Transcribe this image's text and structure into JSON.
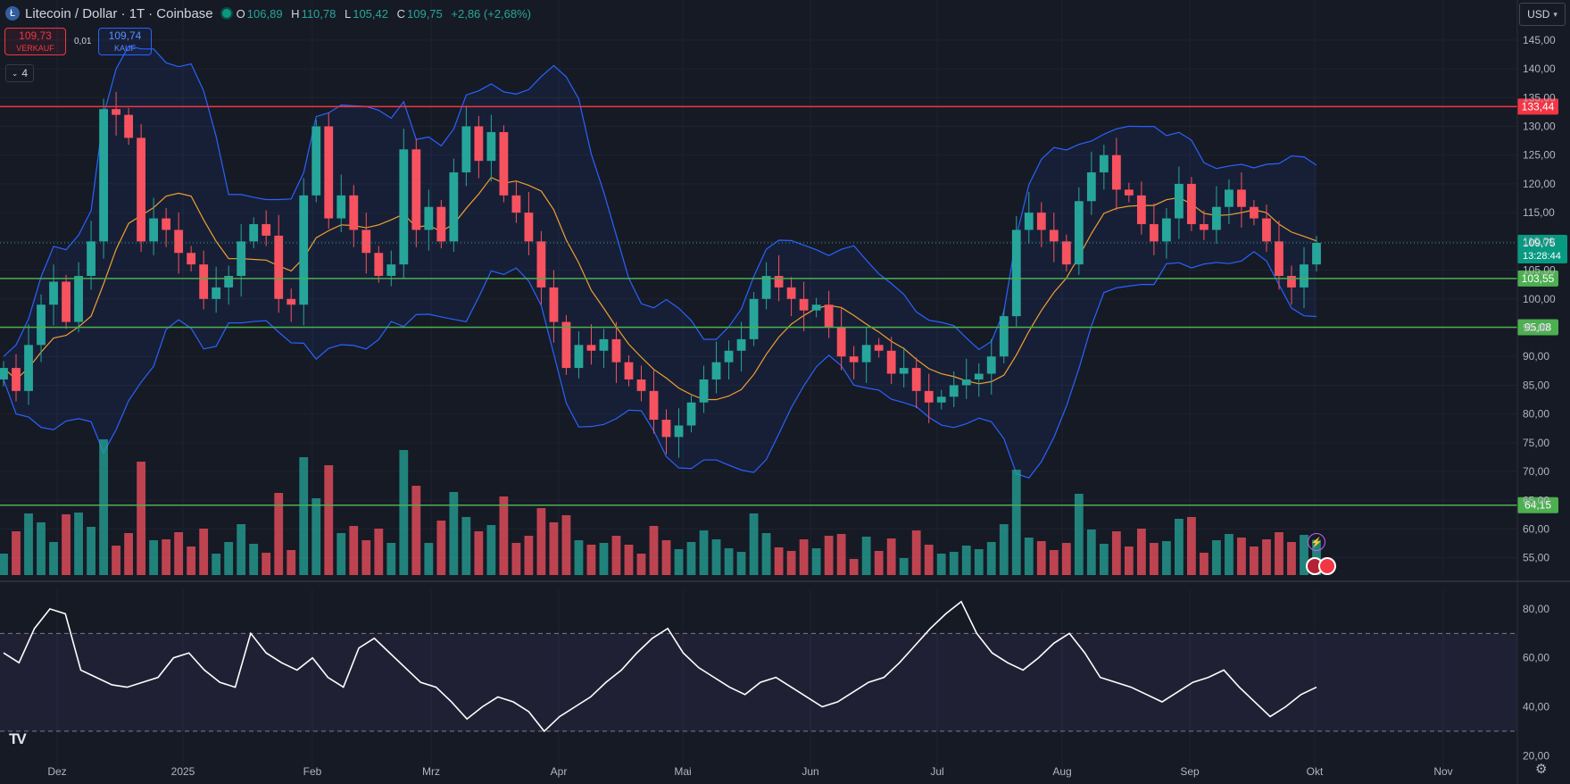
{
  "header": {
    "coin_icon": "litecoin-icon",
    "symbol": "Litecoin / Dollar · 1T · Coinbase",
    "open_label": "O",
    "open": "106,89",
    "high_label": "H",
    "high": "110,78",
    "low_label": "L",
    "low": "105,42",
    "close_label": "C",
    "close": "109,75",
    "change": "+2,86 (+2,68%)"
  },
  "trade": {
    "sell_price": "109,73",
    "sell_label": "VERKAUF",
    "spread": "0,01",
    "buy_price": "109,74",
    "buy_label": "KAUF"
  },
  "indicators_toggle": "4",
  "currency": "USD",
  "colors": {
    "up": "#26a69a",
    "down": "#f7525f",
    "bollinger": "#2962ff",
    "sma": "#f0a030",
    "resistance": "#f23645",
    "support": "#4caf50",
    "rsi": "#ffffff"
  },
  "price_axis": {
    "ticks": [
      "145,00",
      "140,00",
      "135,00",
      "130,00",
      "125,00",
      "120,00",
      "115,00",
      "110,00",
      "105,00",
      "100,00",
      "95,00",
      "90,00",
      "85,00",
      "80,00",
      "75,00",
      "70,00",
      "65,00",
      "60,00",
      "55,00"
    ],
    "tick_values": [
      145,
      140,
      135,
      130,
      125,
      120,
      115,
      110,
      105,
      100,
      95,
      90,
      85,
      80,
      75,
      70,
      65,
      60,
      55
    ]
  },
  "levels": [
    {
      "value": 133.44,
      "label": "133,44",
      "kind": "resistance"
    },
    {
      "value": 103.55,
      "label": "103,55",
      "kind": "support"
    },
    {
      "value": 95.08,
      "label": "95,08",
      "kind": "support"
    },
    {
      "value": 64.15,
      "label": "64,15",
      "kind": "support"
    }
  ],
  "current_price": {
    "value": 109.75,
    "label": "109,75",
    "countdown": "13:28:44"
  },
  "rsi_axis": {
    "ticks": [
      "80,00",
      "60,00",
      "40,00",
      "20,00"
    ],
    "tick_values": [
      80,
      60,
      40,
      20
    ],
    "upper_band": 70,
    "lower_band": 30
  },
  "time_axis": [
    "Dez",
    "2025",
    "Feb",
    "Mrz",
    "Apr",
    "Mai",
    "Jun",
    "Jul",
    "Aug",
    "Sep",
    "Okt",
    "Nov"
  ],
  "chart_data": [
    {
      "type": "candlestick",
      "title": "Litecoin / Dollar · 1T · Coinbase",
      "series": [
        {
          "name": "LTCUSD",
          "values": [
            88,
            84,
            92,
            99,
            103,
            96,
            104,
            110,
            133,
            132,
            128,
            110,
            114,
            112,
            108,
            106,
            100,
            102,
            104,
            110,
            113,
            111,
            100,
            99,
            118,
            130,
            114,
            118,
            112,
            108,
            104,
            106,
            126,
            112,
            116,
            110,
            122,
            130,
            124,
            129,
            118,
            115,
            110,
            102,
            96,
            88,
            92,
            91,
            93,
            89,
            86,
            84,
            79,
            76,
            78,
            82,
            86,
            89,
            91,
            93,
            100,
            104,
            102,
            100,
            98,
            99,
            95,
            90,
            89,
            92,
            91,
            87,
            88,
            84,
            82,
            83,
            85,
            86,
            87,
            90,
            97,
            112,
            115,
            112,
            110,
            106,
            117,
            122,
            125,
            119,
            118,
            113,
            110,
            114,
            120,
            113,
            112,
            116,
            119,
            116,
            114,
            110,
            104,
            102,
            106,
            109.75
          ]
        },
        {
          "name": "Volume",
          "values": []
        }
      ],
      "ylim": [
        52,
        147
      ]
    },
    {
      "type": "line",
      "series": [
        {
          "name": "RSI",
          "values": [
            62,
            58,
            72,
            80,
            78,
            55,
            52,
            49,
            48,
            50,
            52,
            60,
            62,
            55,
            50,
            48,
            70,
            62,
            58,
            55,
            60,
            52,
            48,
            64,
            68,
            62,
            56,
            50,
            48,
            42,
            35,
            40,
            44,
            42,
            38,
            30,
            36,
            40,
            44,
            50,
            55,
            62,
            68,
            72,
            62,
            56,
            52,
            48,
            45,
            50,
            52,
            48,
            44,
            40,
            42,
            46,
            50,
            52,
            58,
            65,
            72,
            78,
            83,
            70,
            62,
            58,
            55,
            60,
            66,
            70,
            62,
            52,
            50,
            48,
            45,
            42,
            46,
            50,
            52,
            55,
            48,
            42,
            36,
            40,
            45,
            48
          ]
        }
      ],
      "ylim": [
        15,
        88
      ]
    }
  ]
}
